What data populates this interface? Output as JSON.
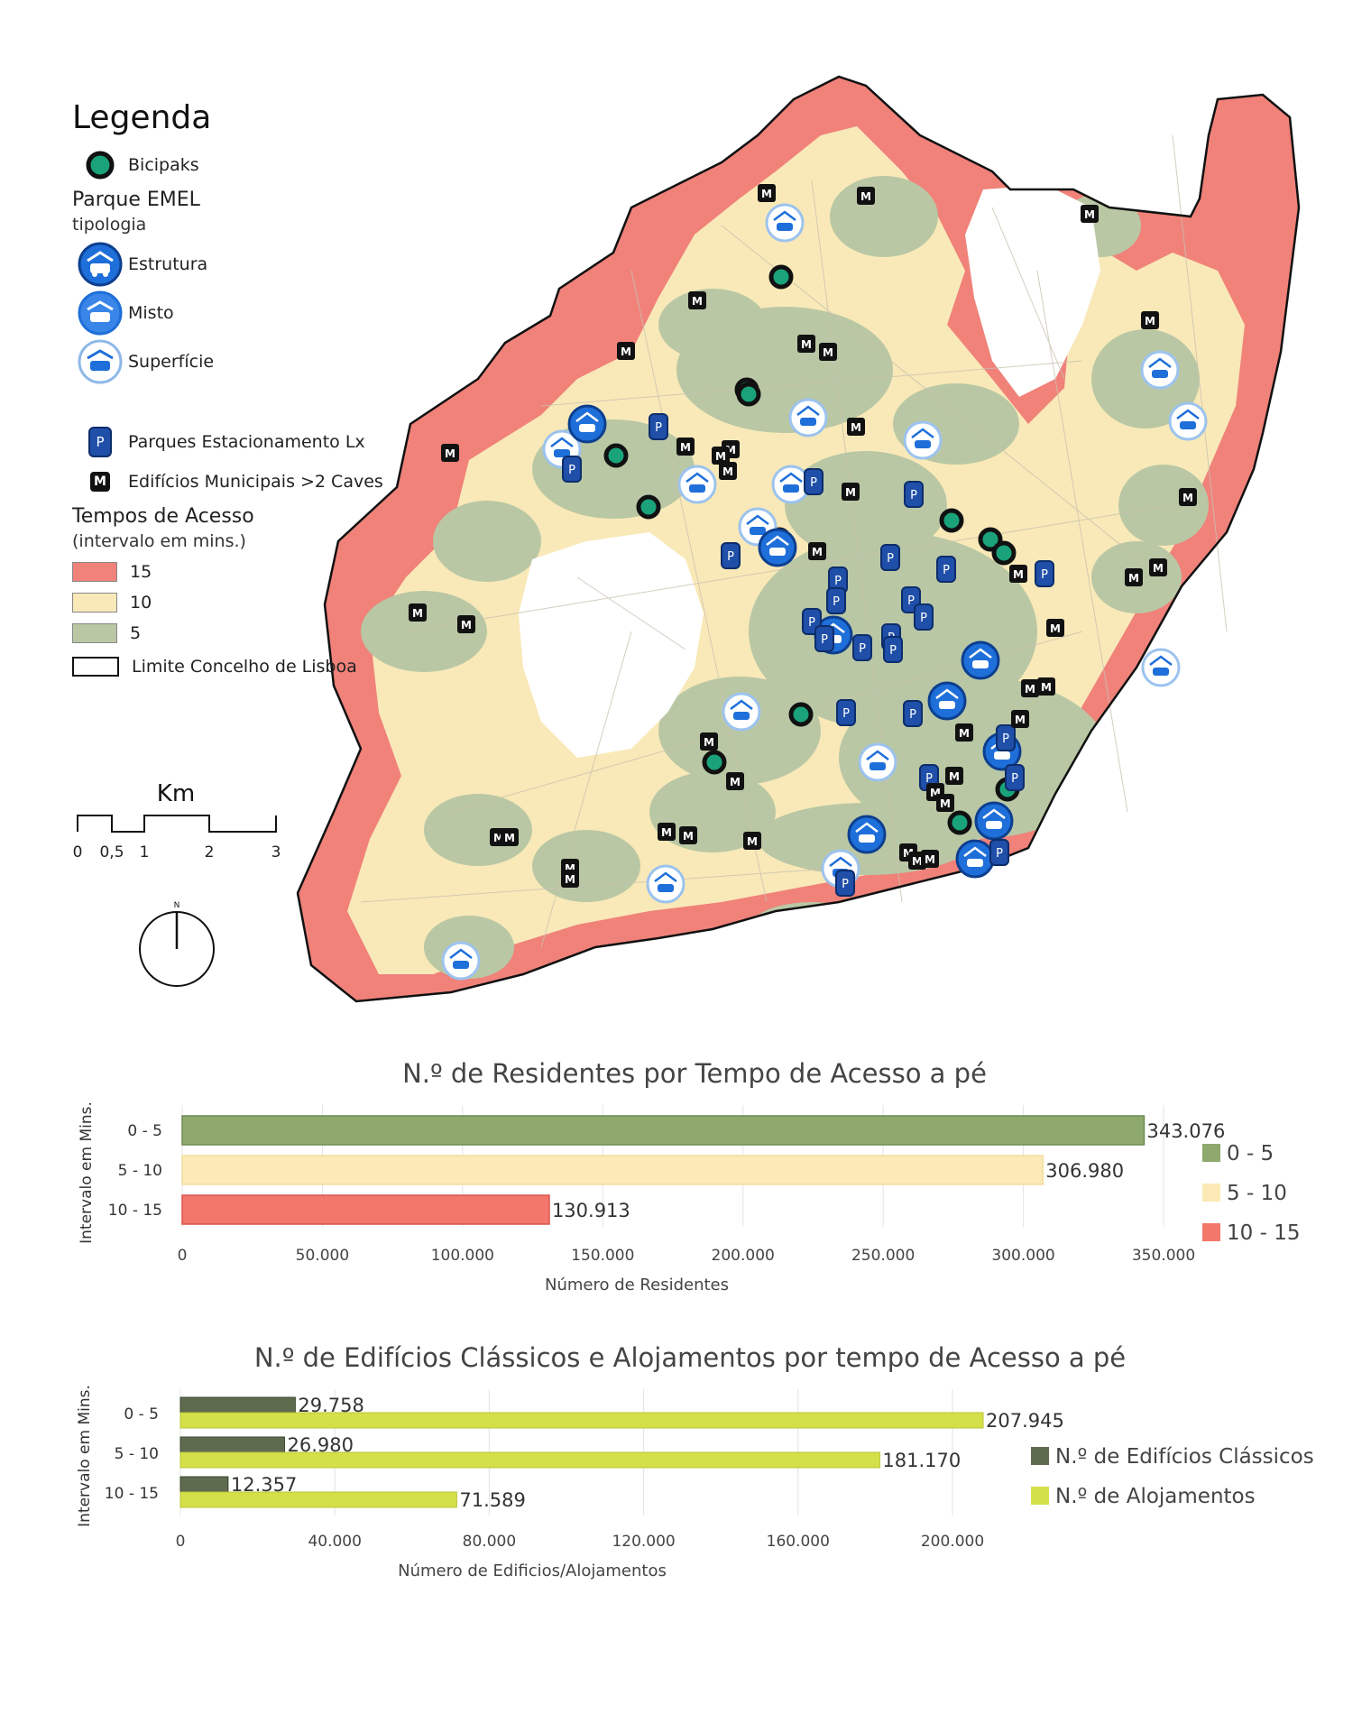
{
  "legend": {
    "title": "Legenda",
    "bicipaks": "Bicipaks",
    "parque_emel": "Parque EMEL",
    "tipologia": "tipologia",
    "estrutura": "Estrutura",
    "misto": "Misto",
    "superficie": "Superfície",
    "parques_lx": "Parques Estacionamento Lx",
    "edificios_municipais": "Edifícios Municipais >2 Caves",
    "tempos_title": "Tempos de Acesso",
    "tempos_sub": "(intervalo em mins.)",
    "t15": "15",
    "t10": "10",
    "t5": "5",
    "limite": "Limite Concelho de Lisboa",
    "p_glyph": "P",
    "m_glyph": "M"
  },
  "scale_bar": {
    "unit": "Km",
    "ticks": [
      "0",
      "0,5",
      "1",
      "2",
      "3"
    ]
  },
  "north_arrow": {
    "label": "N"
  },
  "colors": {
    "zone_15": "#f0827a",
    "zone_10": "#f9e9b8",
    "zone_5": "#b9c7a4",
    "bicipak": "#1aa37a",
    "emel_blue": "#1e6fd9",
    "parking_blue": "#1f4fa8",
    "bar_0_5": "#8fa86e",
    "bar_5_10": "#fbeab6",
    "bar_10_15": "#f4776c",
    "edificios": "#5f6b4f",
    "alojamentos": "#d4e04a"
  },
  "chart_data": [
    {
      "type": "bar",
      "orientation": "horizontal",
      "title": "N.º de Residentes por Tempo de Acesso a pé",
      "ylabel": "Intervalo em Mins.",
      "xlabel": "Número de Residentes",
      "categories": [
        "0 - 5",
        "5 - 10",
        "10 - 15"
      ],
      "values": [
        343076,
        306980,
        130913
      ],
      "value_labels": [
        "343.076",
        "306.980",
        "130.913"
      ],
      "legend": [
        "0 - 5",
        "5 - 10",
        "10 - 15"
      ],
      "xlim": [
        0,
        350000
      ],
      "xticks": [
        "0",
        "50.000",
        "100.000",
        "150.000",
        "200.000",
        "250.000",
        "300.000",
        "350.000"
      ],
      "grid": true,
      "legend_position": "right"
    },
    {
      "type": "bar",
      "orientation": "horizontal",
      "title": "N.º de Edifícios Clássicos e Alojamentos por tempo de Acesso a pé",
      "ylabel": "Intervalo em Mins.",
      "xlabel": "Número de Edificios/Alojamentos",
      "categories": [
        "0 - 5",
        "5 - 10",
        "10 - 15"
      ],
      "series": [
        {
          "name": "N.º de Edifícios Clássicos",
          "values": [
            29758,
            26980,
            12357
          ],
          "labels": [
            "29.758",
            "26.980",
            "12.357"
          ]
        },
        {
          "name": "N.º de Alojamentos",
          "values": [
            207945,
            181170,
            71589
          ],
          "labels": [
            "207.945",
            "181.170",
            "71.589"
          ]
        }
      ],
      "xlim": [
        0,
        240000
      ],
      "xticks": [
        "0",
        "40.000",
        "80.000",
        "120.000",
        "160.000",
        "200.000"
      ],
      "grid": true,
      "legend_position": "right"
    }
  ]
}
